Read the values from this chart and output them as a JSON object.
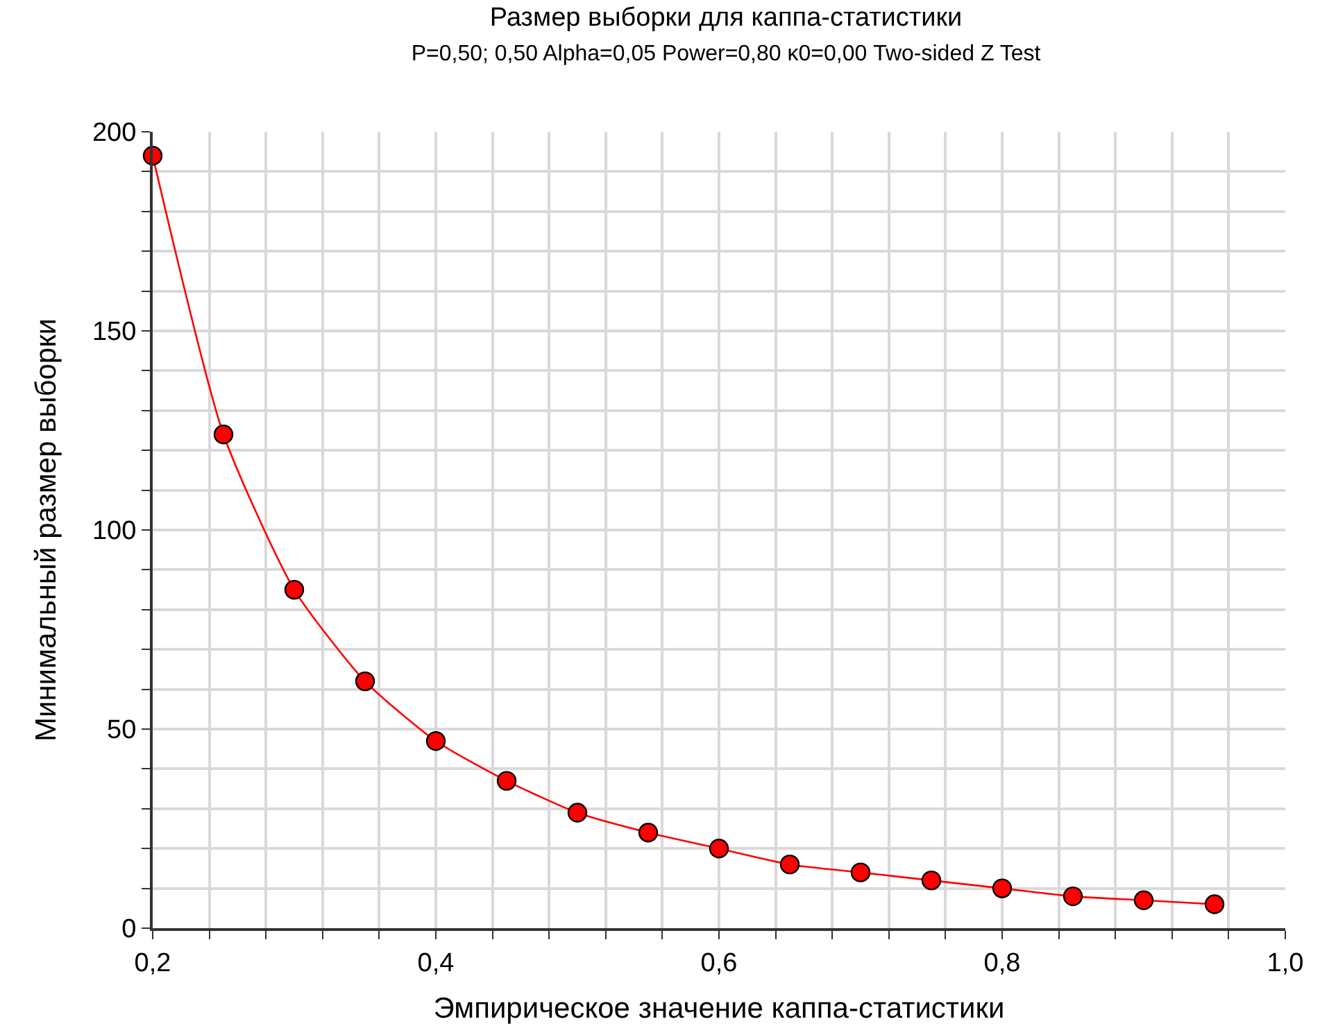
{
  "chart_data": {
    "type": "line",
    "title": "Размер выборки для каппа-статистики",
    "subtitle": "P=0,50; 0,50 Alpha=0,05 Power=0,80 κ0=0,00 Two-sided Z Test",
    "xlabel": "Эмпирическое значение каппа-статистики",
    "ylabel": "Минимальный размер выборки",
    "x": [
      0.2,
      0.25,
      0.3,
      0.35,
      0.4,
      0.45,
      0.5,
      0.55,
      0.6,
      0.65,
      0.7,
      0.75,
      0.8,
      0.85,
      0.9,
      0.95
    ],
    "series": [
      {
        "color": "#ff0000",
        "values": [
          194,
          124,
          85,
          62,
          47,
          37,
          29,
          24,
          20,
          16,
          14,
          12,
          10,
          8,
          7,
          6
        ]
      }
    ],
    "marker": "circle",
    "line_style": "solid",
    "grid": true,
    "legend": false,
    "xlim": [
      0.2,
      1.0
    ],
    "xticks": [
      {
        "value": 0.2,
        "label": "0,2"
      },
      {
        "value": 0.24,
        "label": null
      },
      {
        "value": 0.28,
        "label": null
      },
      {
        "value": 0.32,
        "label": null
      },
      {
        "value": 0.36,
        "label": null
      },
      {
        "value": 0.4,
        "label": "0,4"
      },
      {
        "value": 0.44,
        "label": null
      },
      {
        "value": 0.48,
        "label": null
      },
      {
        "value": 0.52,
        "label": null
      },
      {
        "value": 0.56,
        "label": null
      },
      {
        "value": 0.6,
        "label": "0,6"
      },
      {
        "value": 0.64,
        "label": null
      },
      {
        "value": 0.68,
        "label": null
      },
      {
        "value": 0.72,
        "label": null
      },
      {
        "value": 0.76,
        "label": null
      },
      {
        "value": 0.8,
        "label": "0,8"
      },
      {
        "value": 0.84,
        "label": null
      },
      {
        "value": 0.88,
        "label": null
      },
      {
        "value": 0.92,
        "label": null
      },
      {
        "value": 0.96,
        "label": null
      },
      {
        "value": 1.0,
        "label": "1,0"
      }
    ],
    "ylim": [
      0,
      200
    ],
    "yticks": [
      0,
      {
        "value": 10,
        "label": null
      },
      {
        "value": 20,
        "label": null
      },
      {
        "value": 30,
        "label": null
      },
      {
        "value": 40,
        "label": null
      },
      50,
      {
        "value": 60,
        "label": null
      },
      {
        "value": 70,
        "label": null
      },
      {
        "value": 80,
        "label": null
      },
      {
        "value": 90,
        "label": null
      },
      100,
      {
        "value": 110,
        "label": null
      },
      {
        "value": 120,
        "label": null
      },
      {
        "value": 130,
        "label": null
      },
      {
        "value": 140,
        "label": null
      },
      150,
      {
        "value": 160,
        "label": null
      },
      {
        "value": 170,
        "label": null
      },
      {
        "value": 180,
        "label": null
      },
      {
        "value": 190,
        "label": null
      },
      200
    ]
  }
}
